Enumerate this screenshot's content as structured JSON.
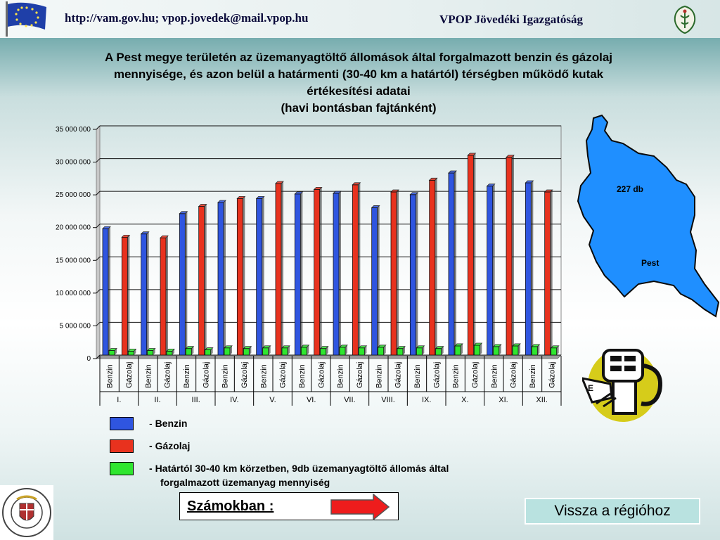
{
  "header": {
    "left_text": "http://vam.gov.hu; vpop.jovedek@mail.vpop.hu",
    "right_text": "VPOP Jövedéki Igazgatóság"
  },
  "title_lines": [
    "A Pest megye területén az üzemanyagtöltő állomások által forgalmazott benzin és gázolaj",
    "mennyisége, és azon belül a határmenti (30-40 km a határtól) térségben működő kutak",
    "értékesítési adatai",
    "(havi bontásban fajtánként)"
  ],
  "colors": {
    "benzin": "#2f55e0",
    "gazolaj": "#e8321e",
    "hatar": "#2fe62f",
    "map": "#1f8fff"
  },
  "chart_data": {
    "type": "bar",
    "ylim": [
      0,
      35000000
    ],
    "yticks": [
      0,
      5000000,
      10000000,
      15000000,
      20000000,
      25000000,
      30000000,
      35000000
    ],
    "ytick_labels": [
      "0",
      "5 000 000",
      "10 000 000",
      "15 000 000",
      "20 000 000",
      "25 000 000",
      "30 000 000",
      "35 000 000"
    ],
    "months": [
      "I.",
      "II.",
      "III.",
      "IV.",
      "V.",
      "VI.",
      "VII.",
      "VIII.",
      "IX.",
      "X.",
      "XI.",
      "XII."
    ],
    "fuel_labels": [
      "Benzin",
      "Gázolaj"
    ],
    "categories": [
      "Benzin",
      "Gázolaj",
      "Benzin",
      "Gázolaj",
      "Benzin",
      "Gázolaj",
      "Benzin",
      "Gázolaj",
      "Benzin",
      "Gázolaj",
      "Benzin",
      "Gázolaj",
      "Benzin",
      "Gázolaj",
      "Benzin",
      "Gázolaj",
      "Benzin",
      "Gázolaj",
      "Benzin",
      "Gázolaj",
      "Benzin",
      "Gázolaj",
      "Benzin",
      "Gázolaj"
    ],
    "total": [
      19300000,
      18000000,
      18500000,
      17900000,
      21600000,
      22700000,
      23300000,
      23900000,
      23900000,
      26200000,
      24600000,
      25300000,
      24700000,
      26000000,
      22500000,
      24900000,
      24500000,
      26700000,
      27800000,
      30500000,
      25800000,
      30200000,
      26300000,
      24900000
    ],
    "border_zone": [
      700000,
      600000,
      700000,
      600000,
      1000000,
      800000,
      1100000,
      1000000,
      1100000,
      1100000,
      1200000,
      1000000,
      1200000,
      1100000,
      1200000,
      1000000,
      1100000,
      1000000,
      1400000,
      1500000,
      1300000,
      1400000,
      1300000,
      1100000
    ],
    "legend": [
      {
        "label": "Benzin",
        "prefix": "- ",
        "color": "#2f55e0"
      },
      {
        "label": "Gázolaj",
        "prefix": "- ",
        "color": "#e8321e"
      },
      {
        "label": "Határtól 30-40 km körzetben, 9db üzemanyagtöltő állomás által",
        "label2": "forgalmazott üzemanyag mennyiség",
        "prefix": "- ",
        "color": "#2fe62f"
      }
    ]
  },
  "map": {
    "count_label": "227 db",
    "region_label": "Pest"
  },
  "buttons": {
    "szamokban": "Számokban :",
    "vissza": "Vissza a régióhoz"
  }
}
